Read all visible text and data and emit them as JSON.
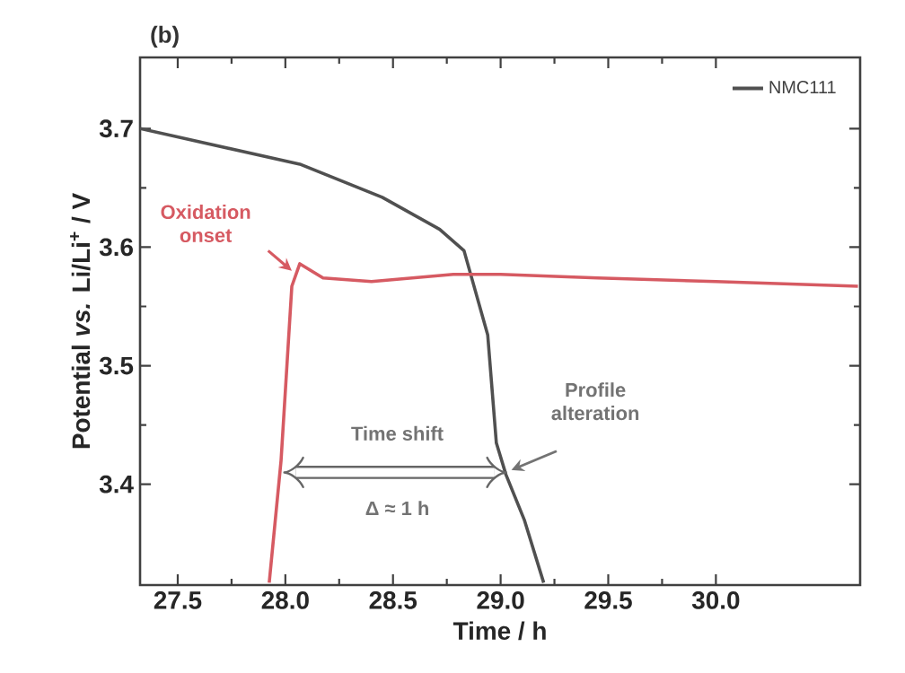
{
  "chart_data": {
    "type": "line",
    "xlabel": "Time / h",
    "ylabel": "Potential *vs.* Li/Li$^{+}$ / V",
    "xlim": [
      27.325,
      30.67
    ],
    "ylim": [
      3.315,
      3.76
    ],
    "xticks": [
      {
        "value": 27.5,
        "label": "27.5"
      },
      {
        "value": 28.0,
        "label": "28.0"
      },
      {
        "value": 28.5,
        "label": "28.5"
      },
      {
        "value": 29.0,
        "label": "29.0"
      },
      {
        "value": 29.5,
        "label": "29.5"
      },
      {
        "value": 30.0,
        "label": "30.0"
      }
    ],
    "yticks": [
      3.4,
      3.5,
      3.6,
      3.7
    ],
    "legend": "top right",
    "marker": "none",
    "line_style": "solid",
    "grid": false,
    "series": [
      {
        "name": "NMC111",
        "color": "#505050",
        "x": [
          27.325,
          28.067,
          28.45,
          28.717,
          28.83,
          28.94,
          28.98,
          29.025,
          29.11,
          29.2
        ],
        "values": [
          3.7,
          3.67,
          3.642,
          3.615,
          3.597,
          3.526,
          3.435,
          3.408,
          3.37,
          3.317
        ]
      },
      {
        "color": "#d65a62",
        "x": [
          27.925,
          27.98,
          28.03,
          28.067,
          28.175,
          28.4,
          28.78,
          29.0,
          29.45,
          30.0,
          30.66
        ],
        "values": [
          3.317,
          3.42,
          3.567,
          3.586,
          3.574,
          3.571,
          3.577,
          3.577,
          3.574,
          3.571,
          3.567
        ]
      }
    ],
    "annotations": [
      "(b)",
      {
        "text": "Oxidation onset",
        "x": 28.05,
        "y": 3.585
      },
      "Profile alteration",
      "Time shift",
      "Δ ≈ 1 h"
    ]
  }
}
